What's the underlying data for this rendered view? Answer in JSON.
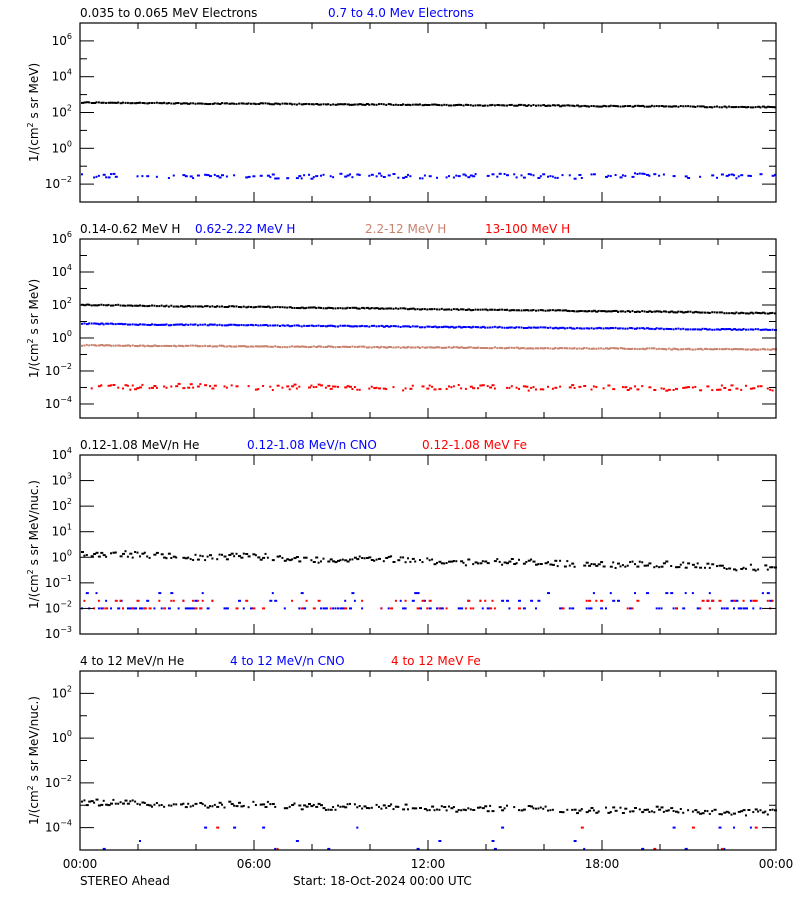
{
  "colors": {
    "black": "#000000",
    "blue": "#0000ff",
    "brown": "#c8826e",
    "red": "#ff0000"
  },
  "footer": {
    "spacecraft": "STEREO Ahead",
    "start": "Start: 18-Oct-2024 00:00 UTC"
  },
  "x_axis": {
    "tick_labels": [
      "00:00",
      "06:00",
      "12:00",
      "18:00",
      "00:00"
    ],
    "range_hours": [
      0,
      24
    ]
  },
  "chart_data": [
    {
      "type": "scatter",
      "panel": 1,
      "title": "",
      "ylabel": "1/(cm² s sr MeV)",
      "yscale": "log",
      "ylim_exp": [
        -3,
        7
      ],
      "ytick_exps": [
        6,
        4,
        2,
        0,
        -2
      ],
      "legend": [
        {
          "name": "0.035 to 0.065 MeV Electrons",
          "color": "#000000"
        },
        {
          "name": "0.7 to 4.0 Mev Electrons",
          "color": "#0000ff"
        }
      ],
      "series": [
        {
          "name": "0.035 to 0.065 MeV Electrons",
          "color": "#000000",
          "log_start": 2.55,
          "log_end": 2.3,
          "noise": 0.03,
          "density": 1,
          "missing": 0
        },
        {
          "name": "0.7 to 4.0 Mev Electrons",
          "color": "#0000ff",
          "log_start": -1.55,
          "log_end": -1.55,
          "noise": 0.12,
          "density": 0.55,
          "missing": 0
        }
      ]
    },
    {
      "type": "scatter",
      "panel": 2,
      "ylabel": "1/(cm² s sr MeV)",
      "yscale": "log",
      "ylim_exp": [
        -4.85,
        6
      ],
      "ytick_exps": [
        6,
        4,
        2,
        0,
        -2,
        -4
      ],
      "legend": [
        {
          "name": "0.14-0.62 MeV H",
          "color": "#000000"
        },
        {
          "name": "0.62-2.22 MeV H",
          "color": "#0000ff"
        },
        {
          "name": "2.2-12 MeV H",
          "color": "#c8826e"
        },
        {
          "name": "13-100 MeV H",
          "color": "#ff0000"
        }
      ],
      "series": [
        {
          "name": "0.14-0.62 MeV H",
          "color": "#000000",
          "log_start": 2.0,
          "log_end": 1.5,
          "noise": 0.03,
          "density": 1,
          "missing": 0
        },
        {
          "name": "0.62-2.22 MeV H",
          "color": "#0000ff",
          "log_start": 0.85,
          "log_end": 0.5,
          "noise": 0.03,
          "density": 1,
          "missing": 0
        },
        {
          "name": "2.2-12 MeV H",
          "color": "#c8826e",
          "log_start": -0.45,
          "log_end": -0.7,
          "noise": 0.03,
          "density": 1,
          "missing": 0
        },
        {
          "name": "13-100 MeV H",
          "color": "#ff0000",
          "log_start": -2.95,
          "log_end": -3.05,
          "noise": 0.15,
          "density": 0.6,
          "missing": 0
        }
      ]
    },
    {
      "type": "scatter",
      "panel": 3,
      "ylabel": "1/(cm² s sr MeV/nuc.)",
      "yscale": "log",
      "ylim_exp": [
        -3,
        4
      ],
      "ytick_exps": [
        4,
        3,
        2,
        1,
        0,
        -1,
        -2,
        -3
      ],
      "legend": [
        {
          "name": "0.12-1.08 MeV/n He",
          "color": "#000000"
        },
        {
          "name": "0.12-1.08 MeV/n CNO",
          "color": "#0000ff"
        },
        {
          "name": "0.12-1.08 MeV Fe",
          "color": "#ff0000"
        }
      ],
      "series": [
        {
          "name": "0.12-1.08 MeV/n He",
          "color": "#000000",
          "log_start": 0.12,
          "log_end": -0.4,
          "noise": 0.12,
          "density": 0.85,
          "missing": 0
        },
        {
          "name": "0.12-1.08 MeV/n CNO",
          "color": "#0000ff",
          "log_levels": [
            -2.0,
            -1.7,
            -1.4
          ],
          "density": 0.45,
          "missing": 0
        },
        {
          "name": "0.12-1.08 MeV Fe",
          "color": "#ff0000",
          "log_levels": [
            -2.0,
            -1.7
          ],
          "density": 0.25,
          "missing": 0
        }
      ]
    },
    {
      "type": "scatter",
      "panel": 4,
      "ylabel": "1/(cm² s sr MeV/nuc.)",
      "yscale": "log",
      "ylim_exp": [
        -5,
        3
      ],
      "ytick_exps": [
        2,
        0,
        -2,
        -4
      ],
      "legend": [
        {
          "name": "4 to 12 MeV/n He",
          "color": "#000000"
        },
        {
          "name": "4 to 12 MeV/n CNO",
          "color": "#0000ff"
        },
        {
          "name": "4 to 12 MeV Fe",
          "color": "#ff0000"
        }
      ],
      "series": [
        {
          "name": "4 to 12 MeV/n He",
          "color": "#000000",
          "log_start": -2.9,
          "log_end": -3.3,
          "noise": 0.14,
          "density": 0.85,
          "missing": 0
        },
        {
          "name": "4 to 12 MeV/n CNO",
          "color": "#0000ff",
          "log_levels": [
            -4.95,
            -4.0,
            -4.6
          ],
          "density": 0.12,
          "missing": 0
        },
        {
          "name": "4 to 12 MeV Fe",
          "color": "#ff0000",
          "log_levels": [
            -4.0,
            -4.95
          ],
          "density": 0.03,
          "missing": 0
        }
      ]
    }
  ]
}
